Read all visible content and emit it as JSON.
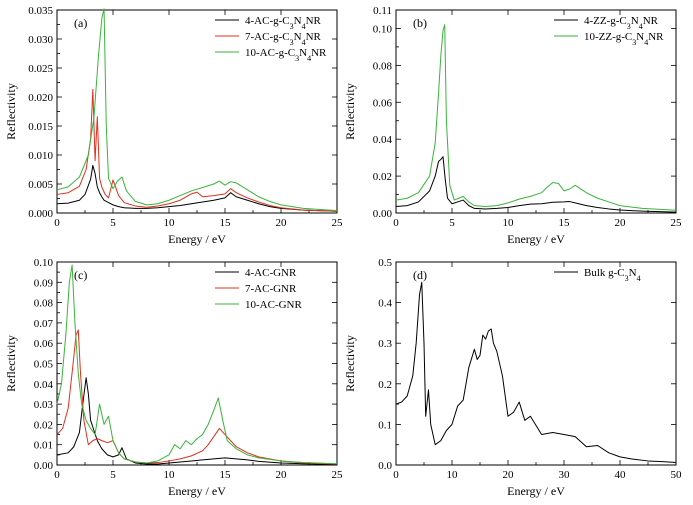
{
  "chart_data": [
    {
      "type": "line",
      "panel_label": "(a)",
      "xlabel": "Energy / eV",
      "ylabel": "Reflectivity",
      "xlim": [
        0,
        25
      ],
      "ylim": [
        0,
        0.035
      ],
      "xticks": [
        0,
        5,
        10,
        15,
        20,
        25
      ],
      "yticks": [
        0.0,
        0.005,
        0.01,
        0.015,
        0.02,
        0.025,
        0.03,
        0.035
      ],
      "ytick_labels": [
        "0.000",
        "0.005",
        "0.010",
        "0.015",
        "0.020",
        "0.025",
        "0.030",
        "0.035"
      ],
      "legend_position": "top-right",
      "series": [
        {
          "legend": {
            "pre": "4-AC-g-C",
            "sub1": "3",
            "mid": "N",
            "sub2": "4",
            "post": "NR"
          },
          "color": "#000000",
          "x": [
            0,
            1,
            2,
            2.5,
            3,
            3.2,
            3.4,
            3.6,
            3.8,
            4.0,
            4.2,
            4.6,
            5.0,
            5.5,
            6,
            7,
            8,
            9,
            10,
            11,
            12,
            13,
            14,
            15,
            15.5,
            16,
            17,
            18,
            19,
            20,
            22,
            25
          ],
          "y": [
            0.0016,
            0.0017,
            0.0022,
            0.0032,
            0.0058,
            0.0082,
            0.0068,
            0.0045,
            0.0035,
            0.0028,
            0.0022,
            0.0018,
            0.0014,
            0.0011,
            0.0009,
            0.0008,
            0.0008,
            0.0009,
            0.0011,
            0.0013,
            0.0016,
            0.0019,
            0.0022,
            0.0026,
            0.0035,
            0.0028,
            0.0022,
            0.0016,
            0.0011,
            0.0008,
            0.0005,
            0.0003
          ]
        },
        {
          "legend": {
            "pre": "7-AC-g-C",
            "sub1": "3",
            "mid": "N",
            "sub2": "4",
            "post": "NR"
          },
          "color": "#e0301e",
          "x": [
            0,
            1,
            2,
            2.6,
            3.0,
            3.2,
            3.4,
            3.6,
            3.8,
            4.0,
            4.3,
            4.6,
            5.0,
            5.5,
            6,
            7,
            8,
            9,
            10,
            11,
            12,
            12.5,
            13,
            14,
            15,
            15.5,
            16,
            17,
            18,
            19,
            20,
            22,
            25
          ],
          "y": [
            0.0032,
            0.0035,
            0.0046,
            0.0075,
            0.0128,
            0.0213,
            0.009,
            0.0166,
            0.006,
            0.0045,
            0.0032,
            0.0026,
            0.0057,
            0.003,
            0.0018,
            0.0012,
            0.001,
            0.0012,
            0.0016,
            0.0022,
            0.0033,
            0.0036,
            0.0028,
            0.003,
            0.0033,
            0.0042,
            0.0035,
            0.0026,
            0.0019,
            0.0013,
            0.0009,
            0.0005,
            0.0003
          ]
        },
        {
          "legend": {
            "pre": "10-AC-g-C",
            "sub1": "3",
            "mid": "N",
            "sub2": "4",
            "post": "NR"
          },
          "color": "#3bb33b",
          "x": [
            0,
            1,
            2,
            2.8,
            3.3,
            3.7,
            4.0,
            4.2,
            4.4,
            4.6,
            5.0,
            5.4,
            5.8,
            6.2,
            7,
            8,
            9,
            10,
            11,
            12,
            13,
            14,
            14.5,
            15,
            15.5,
            16,
            17,
            18,
            19,
            20,
            22,
            25
          ],
          "y": [
            0.004,
            0.0045,
            0.0062,
            0.01,
            0.0165,
            0.027,
            0.0335,
            0.0352,
            0.015,
            0.006,
            0.0042,
            0.0055,
            0.0062,
            0.0038,
            0.002,
            0.0014,
            0.0016,
            0.0022,
            0.003,
            0.0038,
            0.0044,
            0.005,
            0.0055,
            0.0048,
            0.0054,
            0.0052,
            0.004,
            0.0028,
            0.002,
            0.0014,
            0.0008,
            0.0004
          ]
        }
      ]
    },
    {
      "type": "line",
      "panel_label": "(b)",
      "xlabel": "Energy / eV",
      "ylabel": "Reflectivity",
      "xlim": [
        0,
        25
      ],
      "ylim": [
        0,
        0.11
      ],
      "xticks": [
        0,
        5,
        10,
        15,
        20,
        25
      ],
      "yticks": [
        0.0,
        0.02,
        0.04,
        0.06,
        0.08,
        0.1,
        0.11
      ],
      "ytick_labels": [
        "0.00",
        "0.02",
        "0.04",
        "0.06",
        "0.08",
        "0.10",
        "0.11"
      ],
      "legend_position": "top-right",
      "series": [
        {
          "legend": {
            "pre": "4-ZZ-g-C",
            "sub1": "3",
            "mid": "N",
            "sub2": "4",
            "post": "NR"
          },
          "color": "#000000",
          "x": [
            0,
            1,
            2,
            3,
            3.5,
            3.8,
            4.0,
            4.2,
            4.4,
            4.6,
            5.0,
            5.5,
            6.0,
            6.5,
            7,
            8,
            9,
            10,
            11,
            12,
            13,
            14,
            15,
            15.5,
            16,
            17,
            18,
            19,
            20,
            22,
            25
          ],
          "y": [
            0.0035,
            0.004,
            0.006,
            0.012,
            0.02,
            0.028,
            0.029,
            0.0305,
            0.018,
            0.008,
            0.005,
            0.006,
            0.007,
            0.004,
            0.0025,
            0.0022,
            0.0025,
            0.003,
            0.004,
            0.0048,
            0.005,
            0.0058,
            0.006,
            0.0062,
            0.0055,
            0.004,
            0.003,
            0.0022,
            0.0016,
            0.001,
            0.0005
          ]
        },
        {
          "legend": {
            "pre": "10-ZZ-g-C",
            "sub1": "3",
            "mid": "N",
            "sub2": "4",
            "post": "NR"
          },
          "color": "#3bb33b",
          "x": [
            0,
            1,
            2,
            3,
            3.5,
            3.8,
            4.0,
            4.2,
            4.35,
            4.5,
            4.8,
            5.2,
            5.6,
            6.0,
            6.5,
            7,
            8,
            9,
            10,
            11,
            12,
            13,
            13.5,
            14,
            14.5,
            15,
            15.5,
            16,
            17,
            18,
            19,
            20,
            22,
            25
          ],
          "y": [
            0.007,
            0.008,
            0.011,
            0.02,
            0.038,
            0.065,
            0.085,
            0.099,
            0.102,
            0.05,
            0.015,
            0.007,
            0.008,
            0.009,
            0.006,
            0.004,
            0.0035,
            0.004,
            0.0055,
            0.0075,
            0.009,
            0.011,
            0.014,
            0.0165,
            0.016,
            0.012,
            0.013,
            0.015,
            0.011,
            0.008,
            0.006,
            0.004,
            0.0025,
            0.0015
          ]
        }
      ]
    },
    {
      "type": "line",
      "panel_label": "(c)",
      "xlabel": "Energy / eV",
      "ylabel": "Reflectivity",
      "xlim": [
        0,
        25
      ],
      "ylim": [
        0,
        0.1
      ],
      "xticks": [
        0,
        5,
        10,
        15,
        20,
        25
      ],
      "yticks": [
        0.0,
        0.01,
        0.02,
        0.03,
        0.04,
        0.05,
        0.06,
        0.07,
        0.08,
        0.09,
        0.1
      ],
      "ytick_labels": [
        "0.00",
        "0.01",
        "0.02",
        "0.03",
        "0.04",
        "0.05",
        "0.06",
        "0.07",
        "0.08",
        "0.09",
        "0.10"
      ],
      "legend_position": "top-right",
      "series": [
        {
          "legend": {
            "pre": "4-AC-GNR",
            "sub1": "",
            "mid": "",
            "sub2": "",
            "post": ""
          },
          "color": "#000000",
          "x": [
            0,
            1,
            1.5,
            2.0,
            2.3,
            2.6,
            2.8,
            3.0,
            3.3,
            3.6,
            4.0,
            4.5,
            5.0,
            5.5,
            5.8,
            6.2,
            7,
            8,
            9,
            10,
            11,
            12,
            13,
            14,
            15,
            16,
            17,
            18,
            20,
            22,
            25
          ],
          "y": [
            0.005,
            0.006,
            0.009,
            0.016,
            0.03,
            0.043,
            0.035,
            0.022,
            0.017,
            0.012,
            0.008,
            0.005,
            0.004,
            0.005,
            0.0085,
            0.003,
            0.001,
            0.0005,
            0.0005,
            0.001,
            0.0015,
            0.002,
            0.0025,
            0.003,
            0.0035,
            0.003,
            0.0025,
            0.0018,
            0.001,
            0.0006,
            0.0003
          ]
        },
        {
          "legend": {
            "pre": "7-AC-GNR",
            "sub1": "",
            "mid": "",
            "sub2": "",
            "post": ""
          },
          "color": "#e0301e",
          "x": [
            0,
            0.5,
            1.0,
            1.4,
            1.7,
            1.9,
            2.1,
            2.4,
            2.8,
            3.2,
            3.6,
            4.0,
            4.5,
            5.0,
            5.5,
            6,
            7,
            8,
            9,
            10,
            11,
            12,
            13,
            13.5,
            14,
            14.5,
            15,
            16,
            17,
            18,
            20,
            22,
            25
          ],
          "y": [
            0.015,
            0.018,
            0.028,
            0.048,
            0.064,
            0.0665,
            0.045,
            0.022,
            0.01,
            0.012,
            0.013,
            0.012,
            0.011,
            0.012,
            0.006,
            0.003,
            0.0015,
            0.001,
            0.0012,
            0.002,
            0.003,
            0.0045,
            0.007,
            0.01,
            0.014,
            0.018,
            0.015,
            0.009,
            0.006,
            0.004,
            0.002,
            0.001,
            0.0005
          ]
        },
        {
          "legend": {
            "pre": "10-AC-GNR",
            "sub1": "",
            "mid": "",
            "sub2": "",
            "post": ""
          },
          "color": "#3bb33b",
          "x": [
            0,
            0.4,
            0.8,
            1.1,
            1.35,
            1.6,
            1.9,
            2.2,
            2.6,
            3.0,
            3.4,
            3.8,
            4.2,
            4.6,
            5.0,
            5.5,
            6,
            7,
            8,
            9,
            10,
            10.5,
            11,
            11.5,
            12,
            12.5,
            13,
            13.5,
            14,
            14.4,
            14.8,
            15.2,
            16,
            17,
            18,
            20,
            22,
            25
          ],
          "y": [
            0.03,
            0.04,
            0.065,
            0.09,
            0.0985,
            0.07,
            0.045,
            0.03,
            0.022,
            0.018,
            0.015,
            0.03,
            0.02,
            0.024,
            0.012,
            0.006,
            0.003,
            0.0015,
            0.001,
            0.002,
            0.005,
            0.01,
            0.008,
            0.012,
            0.01,
            0.013,
            0.015,
            0.02,
            0.027,
            0.033,
            0.022,
            0.012,
            0.008,
            0.005,
            0.0035,
            0.002,
            0.0012,
            0.0006
          ]
        }
      ]
    },
    {
      "type": "line",
      "panel_label": "(d)",
      "xlabel": "Energy / eV",
      "ylabel": "Reflectivity",
      "xlim": [
        0,
        50
      ],
      "ylim": [
        0,
        0.5
      ],
      "xticks": [
        0,
        10,
        20,
        30,
        40,
        50
      ],
      "yticks": [
        0.0,
        0.1,
        0.2,
        0.3,
        0.4,
        0.5
      ],
      "ytick_labels": [
        "0.0",
        "0.1",
        "0.2",
        "0.3",
        "0.4",
        "0.5"
      ],
      "legend_position": "top-right",
      "series": [
        {
          "legend": {
            "pre": "Bulk g-C",
            "sub1": "3",
            "mid": "N",
            "sub2": "4",
            "post": ""
          },
          "color": "#000000",
          "x": [
            0,
            1,
            2,
            3,
            3.6,
            4.2,
            4.6,
            5.0,
            5.3,
            5.8,
            6.2,
            7,
            8,
            9,
            10,
            11,
            12,
            13,
            14,
            14.5,
            15,
            15.5,
            16,
            16.5,
            17,
            17.4,
            18,
            19,
            20,
            21,
            22,
            23,
            24,
            26,
            28,
            30,
            32,
            34,
            36,
            38,
            40,
            42,
            45,
            48,
            50
          ],
          "y": [
            0.15,
            0.155,
            0.17,
            0.22,
            0.3,
            0.42,
            0.45,
            0.3,
            0.12,
            0.185,
            0.1,
            0.05,
            0.06,
            0.085,
            0.1,
            0.145,
            0.16,
            0.24,
            0.285,
            0.26,
            0.27,
            0.32,
            0.31,
            0.33,
            0.335,
            0.3,
            0.28,
            0.22,
            0.12,
            0.13,
            0.155,
            0.11,
            0.12,
            0.075,
            0.08,
            0.075,
            0.07,
            0.045,
            0.048,
            0.03,
            0.02,
            0.015,
            0.01,
            0.008,
            0.006
          ]
        }
      ]
    }
  ]
}
